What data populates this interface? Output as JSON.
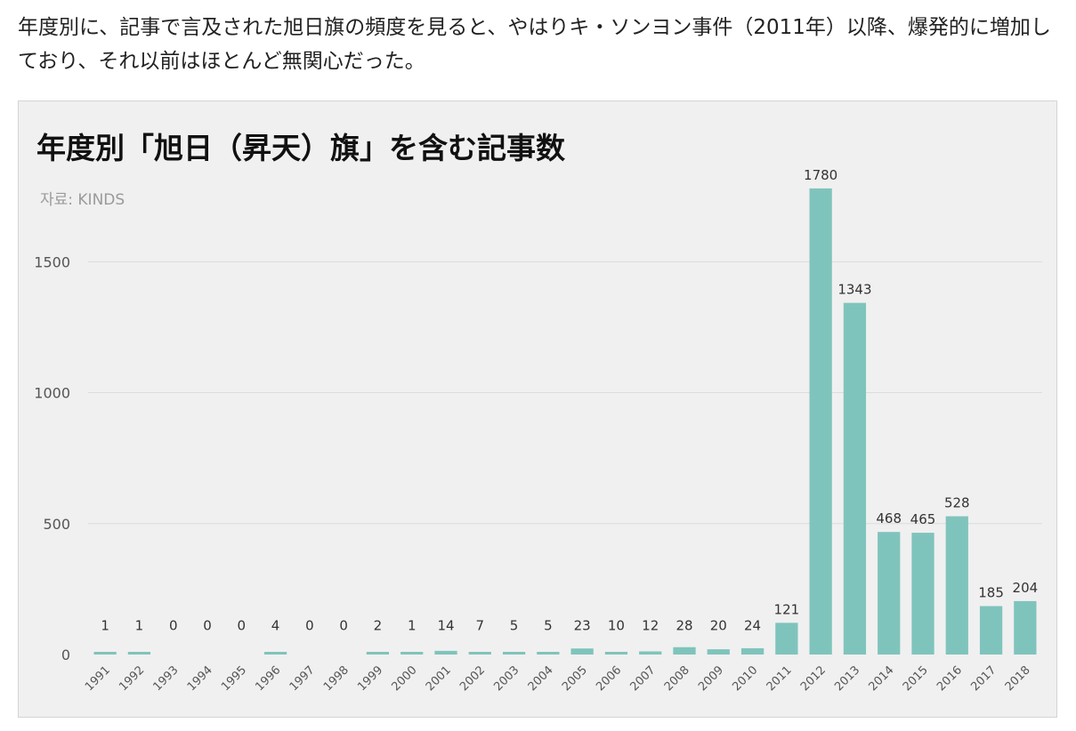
{
  "caption": "年度別に、記事で言及された旭日旗の頻度を見ると、やはりキ・ソンヨン事件（2011年）以降、爆発的に増加しており、それ以前はほとんど無関心だった。",
  "chart_data": {
    "type": "bar",
    "title": "年度別「旭日（昇天）旗」を含む記事数",
    "source": "자료: KINDS",
    "categories": [
      "1991",
      "1992",
      "1993",
      "1994",
      "1995",
      "1996",
      "1997",
      "1998",
      "1999",
      "2000",
      "2001",
      "2002",
      "2003",
      "2004",
      "2005",
      "2006",
      "2007",
      "2008",
      "2009",
      "2010",
      "2011",
      "2012",
      "2013",
      "2014",
      "2015",
      "2016",
      "2017",
      "2018"
    ],
    "values": [
      1,
      1,
      0,
      0,
      0,
      4,
      0,
      0,
      2,
      1,
      14,
      7,
      5,
      5,
      23,
      10,
      12,
      28,
      20,
      24,
      121,
      1780,
      1343,
      468,
      465,
      528,
      185,
      204
    ],
    "yticks": [
      0,
      500,
      1000,
      1500
    ],
    "ylim": [
      0,
      1800
    ],
    "grid": true,
    "xlabel": "",
    "ylabel": "",
    "bar_color": "#7fc4bc",
    "grid_color": "#dcdcdc"
  }
}
